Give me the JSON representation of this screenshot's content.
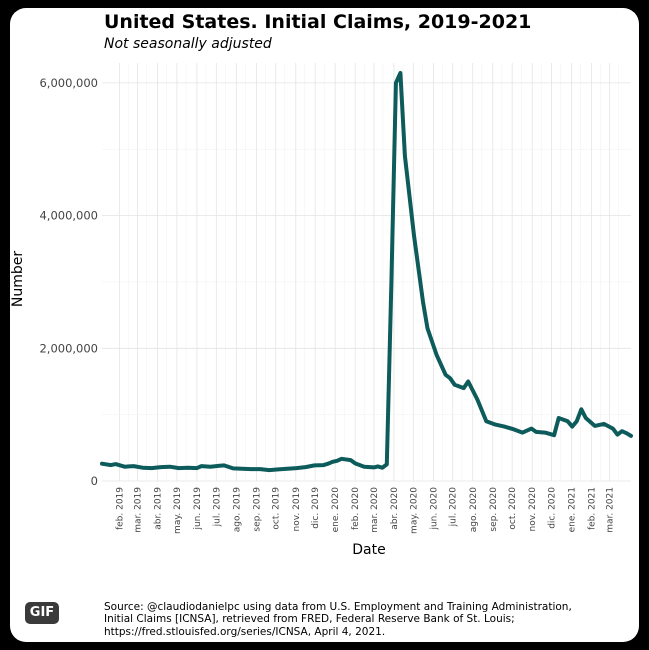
{
  "badge": {
    "label": "GIF"
  },
  "chart_data": {
    "type": "line",
    "title": "United States. Initial Claims, 2019-2021",
    "subtitle": "Not seasonally adjusted",
    "xlabel": "Date",
    "ylabel": "Number",
    "ylim": [
      0,
      6300000
    ],
    "xlim": [
      "2019-01-05",
      "2021-04-03"
    ],
    "grid": true,
    "line_color": "#0d5b5b",
    "y_ticks": [
      {
        "value": 0,
        "label": "0"
      },
      {
        "value": 2000000,
        "label": "2,000,000"
      },
      {
        "value": 4000000,
        "label": "4,000,000"
      },
      {
        "value": 6000000,
        "label": "6,000,000"
      }
    ],
    "x_ticks": [
      {
        "date": "2019-02-01",
        "label": "feb. 2019"
      },
      {
        "date": "2019-03-01",
        "label": "mar. 2019"
      },
      {
        "date": "2019-04-01",
        "label": "abr. 2019"
      },
      {
        "date": "2019-05-01",
        "label": "may. 2019"
      },
      {
        "date": "2019-06-01",
        "label": "jun. 2019"
      },
      {
        "date": "2019-07-01",
        "label": "jul. 2019"
      },
      {
        "date": "2019-08-01",
        "label": "ago. 2019"
      },
      {
        "date": "2019-09-01",
        "label": "sep. 2019"
      },
      {
        "date": "2019-10-01",
        "label": "oct. 2019"
      },
      {
        "date": "2019-11-01",
        "label": "nov. 2019"
      },
      {
        "date": "2019-12-01",
        "label": "dic. 2019"
      },
      {
        "date": "2020-01-01",
        "label": "ene. 2020"
      },
      {
        "date": "2020-02-01",
        "label": "feb. 2020"
      },
      {
        "date": "2020-03-01",
        "label": "mar. 2020"
      },
      {
        "date": "2020-04-01",
        "label": "abr. 2020"
      },
      {
        "date": "2020-05-01",
        "label": "may. 2020"
      },
      {
        "date": "2020-06-01",
        "label": "jun. 2020"
      },
      {
        "date": "2020-07-01",
        "label": "jul. 2020"
      },
      {
        "date": "2020-08-01",
        "label": "ago. 2020"
      },
      {
        "date": "2020-09-01",
        "label": "sep. 2020"
      },
      {
        "date": "2020-10-01",
        "label": "oct. 2020"
      },
      {
        "date": "2020-11-01",
        "label": "nov. 2020"
      },
      {
        "date": "2020-12-01",
        "label": "dic. 2020"
      },
      {
        "date": "2021-01-01",
        "label": "ene. 2021"
      },
      {
        "date": "2021-02-01",
        "label": "feb. 2021"
      },
      {
        "date": "2021-03-01",
        "label": "mar. 2021"
      }
    ],
    "series": [
      {
        "points": [
          [
            "2019-01-05",
            260000
          ],
          [
            "2019-01-19",
            240000
          ],
          [
            "2019-01-26",
            255000
          ],
          [
            "2019-02-09",
            215000
          ],
          [
            "2019-02-23",
            225000
          ],
          [
            "2019-03-09",
            200000
          ],
          [
            "2019-03-23",
            195000
          ],
          [
            "2019-04-06",
            210000
          ],
          [
            "2019-04-20",
            215000
          ],
          [
            "2019-05-04",
            195000
          ],
          [
            "2019-05-18",
            200000
          ],
          [
            "2019-06-01",
            195000
          ],
          [
            "2019-06-08",
            225000
          ],
          [
            "2019-06-22",
            215000
          ],
          [
            "2019-07-06",
            230000
          ],
          [
            "2019-07-13",
            235000
          ],
          [
            "2019-07-27",
            190000
          ],
          [
            "2019-08-10",
            185000
          ],
          [
            "2019-08-24",
            180000
          ],
          [
            "2019-09-07",
            180000
          ],
          [
            "2019-09-21",
            165000
          ],
          [
            "2019-10-05",
            175000
          ],
          [
            "2019-10-19",
            185000
          ],
          [
            "2019-11-02",
            195000
          ],
          [
            "2019-11-16",
            210000
          ],
          [
            "2019-11-30",
            235000
          ],
          [
            "2019-12-14",
            240000
          ],
          [
            "2019-12-21",
            260000
          ],
          [
            "2019-12-28",
            290000
          ],
          [
            "2020-01-04",
            305000
          ],
          [
            "2020-01-11",
            335000
          ],
          [
            "2020-01-25",
            315000
          ],
          [
            "2020-02-01",
            265000
          ],
          [
            "2020-02-15",
            215000
          ],
          [
            "2020-03-01",
            205000
          ],
          [
            "2020-03-07",
            220000
          ],
          [
            "2020-03-14",
            200000
          ],
          [
            "2020-03-21",
            250000
          ],
          [
            "2020-03-28",
            3000000
          ],
          [
            "2020-04-04",
            6000000
          ],
          [
            "2020-04-11",
            6150000
          ],
          [
            "2020-04-18",
            4900000
          ],
          [
            "2020-05-02",
            3700000
          ],
          [
            "2020-05-16",
            2700000
          ],
          [
            "2020-05-23",
            2300000
          ],
          [
            "2020-06-06",
            1900000
          ],
          [
            "2020-06-20",
            1600000
          ],
          [
            "2020-06-27",
            1550000
          ],
          [
            "2020-07-04",
            1450000
          ],
          [
            "2020-07-18",
            1400000
          ],
          [
            "2020-07-25",
            1500000
          ],
          [
            "2020-08-08",
            1230000
          ],
          [
            "2020-08-22",
            900000
          ],
          [
            "2020-09-05",
            850000
          ],
          [
            "2020-09-19",
            820000
          ],
          [
            "2020-10-03",
            780000
          ],
          [
            "2020-10-17",
            730000
          ],
          [
            "2020-10-31",
            790000
          ],
          [
            "2020-11-07",
            740000
          ],
          [
            "2020-11-21",
            730000
          ],
          [
            "2020-12-05",
            690000
          ],
          [
            "2020-12-12",
            950000
          ],
          [
            "2020-12-26",
            900000
          ],
          [
            "2021-01-02",
            820000
          ],
          [
            "2021-01-09",
            900000
          ],
          [
            "2021-01-16",
            1080000
          ],
          [
            "2021-01-23",
            950000
          ],
          [
            "2021-02-06",
            830000
          ],
          [
            "2021-02-20",
            860000
          ],
          [
            "2021-03-06",
            790000
          ],
          [
            "2021-03-13",
            700000
          ],
          [
            "2021-03-20",
            750000
          ],
          [
            "2021-03-27",
            720000
          ],
          [
            "2021-04-03",
            680000
          ]
        ]
      }
    ],
    "source": [
      "Source: @claudiodanielpc using data from U.S. Employment and Training Administration,",
      "Initial Claims [ICNSA], retrieved from FRED, Federal Reserve Bank of St. Louis;",
      "https://fred.stlouisfed.org/series/ICNSA, April 4, 2021."
    ]
  }
}
